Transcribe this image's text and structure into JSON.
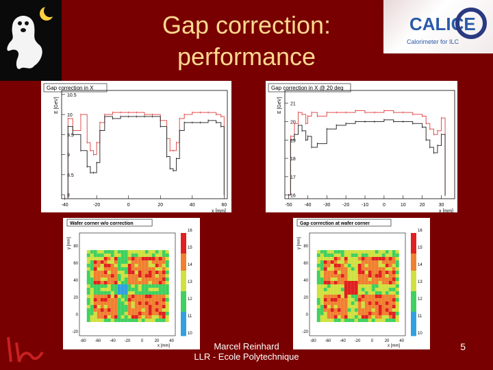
{
  "title_line1": "Gap correction:",
  "title_line2": "performance",
  "footer_line1": "Marcel Reinhard",
  "footer_line2": "LLR - Ecole Polytechnique",
  "page_number": "5",
  "calice_logo_text": "CALICE",
  "calice_subtitle": "Calorimeter for ILC",
  "chart_data": [
    {
      "type": "line",
      "title": "Gap correction in X",
      "ylabel": "E [GeV]",
      "xlabel": "x [mm]",
      "xlim": [
        -42,
        62
      ],
      "ylim": [
        7.9,
        10.6
      ],
      "xticks": [
        "-40",
        "-20",
        "0",
        "20",
        "40",
        "60"
      ],
      "yticks": [
        "8",
        "8.5",
        "9",
        "9.5",
        "10",
        "10.5"
      ],
      "series": [
        {
          "color": "#e05050",
          "x": [
            -40,
            -38,
            -35,
            -30,
            -26,
            -24,
            -22,
            -20,
            -18,
            -15,
            -10,
            -5,
            0,
            5,
            10,
            15,
            20,
            24,
            26,
            28,
            30,
            32,
            35,
            40,
            45,
            50,
            55,
            58,
            60
          ],
          "y": [
            7.9,
            9.9,
            9.6,
            10.0,
            9.3,
            9.1,
            9.0,
            9.3,
            9.8,
            10.0,
            10.05,
            10.05,
            10.05,
            10.05,
            10.0,
            10.0,
            9.85,
            9.4,
            9.1,
            9.1,
            9.3,
            9.9,
            10.0,
            10.05,
            10.05,
            10.05,
            10.0,
            9.95,
            8.0
          ]
        },
        {
          "color": "#303030",
          "x": [
            -40,
            -38,
            -35,
            -30,
            -26,
            -24,
            -22,
            -20,
            -18,
            -15,
            -10,
            -5,
            0,
            5,
            10,
            15,
            20,
            24,
            26,
            28,
            30,
            32,
            35,
            40,
            45,
            50,
            55,
            58,
            60
          ],
          "y": [
            7.9,
            9.7,
            9.5,
            9.1,
            8.7,
            8.55,
            8.55,
            8.8,
            9.6,
            9.95,
            9.9,
            9.95,
            9.95,
            9.95,
            9.95,
            9.95,
            9.7,
            8.95,
            8.65,
            8.6,
            8.9,
            9.6,
            9.8,
            9.8,
            9.8,
            9.85,
            9.8,
            9.7,
            8.0
          ]
        }
      ]
    },
    {
      "type": "line",
      "title": "Gap correction in X @ 20 deg",
      "ylabel": "E [GeV]",
      "xlabel": "x [mm]",
      "xlim": [
        -52,
        37
      ],
      "ylim": [
        15.8,
        21.7
      ],
      "xticks": [
        "-50",
        "-40",
        "-30",
        "-20",
        "-10",
        "0",
        "10",
        "20",
        "30"
      ],
      "yticks": [
        "16",
        "17",
        "18",
        "19",
        "20",
        "21"
      ],
      "series": [
        {
          "color": "#e05050",
          "x": [
            -50,
            -49,
            -47,
            -45,
            -43,
            -41,
            -40,
            -38,
            -35,
            -30,
            -25,
            -20,
            -15,
            -10,
            -5,
            0,
            5,
            10,
            15,
            20,
            22,
            24,
            26,
            28,
            30,
            32
          ],
          "y": [
            16.0,
            19.2,
            19.9,
            20.5,
            20.4,
            19.9,
            20.3,
            20.5,
            20.3,
            20.5,
            20.5,
            20.5,
            20.6,
            20.5,
            20.5,
            20.6,
            20.5,
            20.5,
            20.4,
            20.3,
            19.9,
            19.6,
            19.3,
            19.5,
            20.2,
            16.0
          ]
        },
        {
          "color": "#303030",
          "x": [
            -50,
            -49,
            -47,
            -45,
            -43,
            -41,
            -40,
            -38,
            -35,
            -30,
            -25,
            -20,
            -15,
            -10,
            -5,
            0,
            5,
            10,
            15,
            20,
            22,
            24,
            26,
            28,
            30,
            32
          ],
          "y": [
            16.0,
            19.0,
            19.3,
            19.8,
            19.5,
            19.0,
            19.2,
            18.6,
            18.8,
            19.6,
            19.8,
            19.9,
            20.0,
            20.0,
            20.0,
            20.1,
            20.0,
            20.0,
            19.9,
            19.7,
            19.0,
            18.6,
            18.3,
            18.7,
            19.3,
            16.0
          ]
        }
      ]
    },
    {
      "type": "heatmap",
      "title": "Wafer corner w/o correction",
      "xlabel": "x [mm]",
      "ylabel": "y [mm]",
      "xticks": [
        "-80",
        "-60",
        "-40",
        "-20",
        "0",
        "20",
        "40"
      ],
      "yticks": [
        "-20",
        "0",
        "20",
        "40",
        "60",
        "80"
      ],
      "colorbar_ticks": [
        "10",
        "11",
        "12",
        "13",
        "14",
        "15",
        "16"
      ],
      "gap_x": -30,
      "gap_y": 32,
      "gap_style": "low"
    },
    {
      "type": "heatmap",
      "title": "Gap correction at wafer corner",
      "xlabel": "x [mm]",
      "ylabel": "y [mm]",
      "xticks": [
        "-80",
        "-60",
        "-40",
        "-20",
        "0",
        "20",
        "40"
      ],
      "yticks": [
        "-20",
        "0",
        "20",
        "40",
        "60",
        "80"
      ],
      "colorbar_ticks": [
        "10",
        "11",
        "12",
        "13",
        "14",
        "15",
        "16"
      ],
      "gap_x": -30,
      "gap_y": 32,
      "gap_style": "corrected"
    }
  ]
}
